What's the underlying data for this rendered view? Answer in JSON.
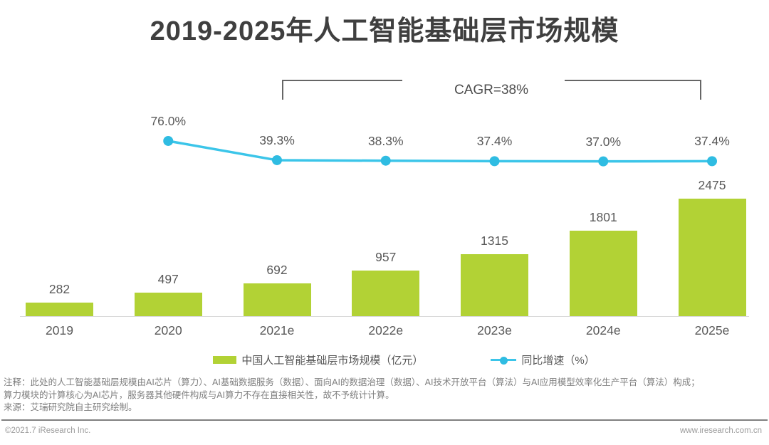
{
  "title": "2019-2025年人工智能基础层市场规模",
  "chart_data": {
    "type": "bar",
    "title": "2019-2025年人工智能基础层市场规模",
    "categories": [
      "2019",
      "2020",
      "2021e",
      "2022e",
      "2023e",
      "2024e",
      "2025e"
    ],
    "series": [
      {
        "name": "中国人工智能基础层市场规模（亿元）",
        "type": "bar",
        "values": [
          282,
          497,
          692,
          957,
          1315,
          1801,
          2475
        ],
        "color": "#B2D235"
      },
      {
        "name": "同比增速（%）",
        "type": "line",
        "values": [
          null,
          76.0,
          39.3,
          38.3,
          37.4,
          37.0,
          37.4
        ],
        "labels": [
          "76.0%",
          "39.3%",
          "38.3%",
          "37.4%",
          "37.0%",
          "37.4%"
        ],
        "color": "#3BC5E9"
      }
    ],
    "annotation": {
      "label": "CAGR=38%",
      "span": [
        "2021e",
        "2025e"
      ]
    },
    "legend_position": "bottom",
    "grid": false,
    "value_labels_shown": true
  },
  "colors": {
    "bar_green": "#B2D235",
    "line_blue": "#3BC5E9",
    "label_gray": "#595959",
    "note_gray": "#7f7f7f"
  },
  "notes": {
    "line1": "注释：此处的人工智能基础层规模由AI芯片（算力）、AI基础数据服务（数据）、面向AI的数据治理（数据）、AI技术开放平台（算法）与AI应用模型效率化生产平台（算法）构成；",
    "line2": "算力模块的计算核心为AI芯片，服务器其他硬件构成与AI算力不存在直接相关性，故不予统计计算。",
    "source": "来源：艾瑞研究院自主研究绘制。"
  },
  "footer": {
    "left": "©2021.7 iResearch Inc.",
    "right": "www.iresearch.com.cn"
  }
}
